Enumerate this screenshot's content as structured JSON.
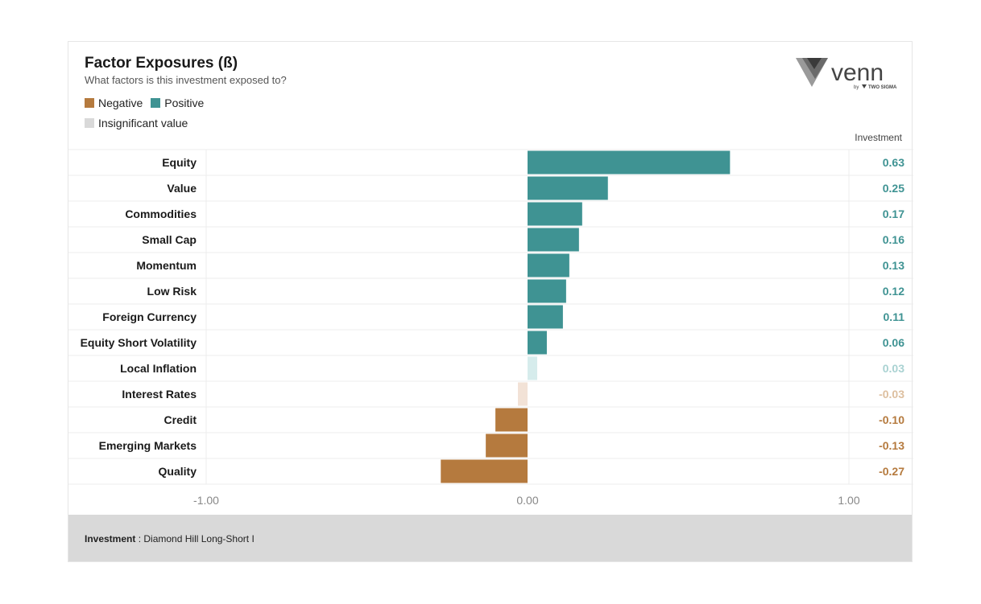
{
  "header": {
    "title": "Factor Exposures (ß)",
    "subtitle": "What factors is this investment exposed to?"
  },
  "legend": {
    "negative": "Negative",
    "positive": "Positive",
    "insignificant": "Insignificant value"
  },
  "brand": {
    "name": "venn",
    "tagline_by": "by",
    "tagline_company": "TWO SIGMA"
  },
  "column_header": "Investment",
  "footer": {
    "label": "Investment",
    "separator": " : ",
    "value": "Diamond Hill Long-Short I"
  },
  "colors": {
    "positive": "#3f9393",
    "negative": "#b57a3e",
    "positive_insignificant": "#d6ecec",
    "negative_insignificant": "#f2e2d6",
    "positive_insignificant_text": "#a9d2d2",
    "negative_insignificant_text": "#ddbf9f",
    "insignificant_legend": "#d9d9d9"
  },
  "chart_data": {
    "type": "bar",
    "orientation": "horizontal",
    "title": "Factor Exposures (ß)",
    "subtitle": "What factors is this investment exposed to?",
    "xlim": [
      -1.0,
      1.0
    ],
    "x_ticks": [
      "-1.00",
      "0.00",
      "1.00"
    ],
    "x_tick_values": [
      -1.0,
      0.0,
      1.0
    ],
    "series": [
      {
        "name": "Investment",
        "categories": [
          "Equity",
          "Value",
          "Commodities",
          "Small Cap",
          "Momentum",
          "Low Risk",
          "Foreign Currency",
          "Equity Short Volatility",
          "Local Inflation",
          "Interest Rates",
          "Credit",
          "Emerging Markets",
          "Quality"
        ],
        "values": [
          0.63,
          0.25,
          0.17,
          0.16,
          0.13,
          0.12,
          0.11,
          0.06,
          0.03,
          -0.03,
          -0.1,
          -0.13,
          -0.27
        ],
        "labels": [
          "0.63",
          "0.25",
          "0.17",
          "0.16",
          "0.13",
          "0.12",
          "0.11",
          "0.06",
          "0.03",
          "-0.03",
          "-0.10",
          "-0.13",
          "-0.27"
        ],
        "significant": [
          true,
          true,
          true,
          true,
          true,
          true,
          true,
          true,
          false,
          false,
          true,
          true,
          true
        ]
      }
    ],
    "legend": [
      "Negative",
      "Positive",
      "Insignificant value"
    ],
    "legend_position": "top-left"
  }
}
